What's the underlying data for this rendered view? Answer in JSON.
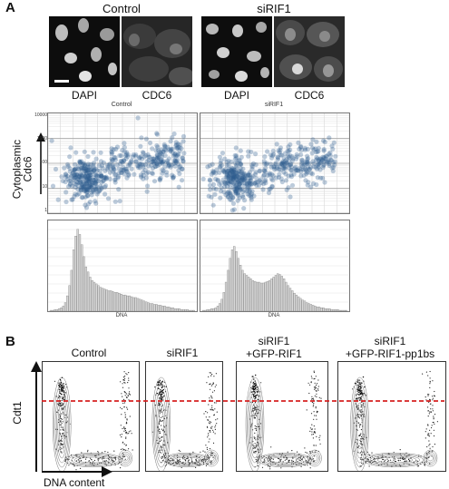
{
  "panel_a": {
    "letter": "A",
    "conditions": [
      "Control",
      "siRIF1"
    ],
    "micro_labels": [
      "DAPI",
      "CDC6",
      "DAPI",
      "CDC6"
    ],
    "scatter_titles": [
      "Control",
      "siRIF1"
    ],
    "ylabel": [
      "Cytoplasmic",
      "Cdc6"
    ],
    "yticks": [
      "10000",
      "1000",
      "100",
      "10",
      "1"
    ],
    "hist_xlabel": "DNA"
  },
  "panel_b": {
    "letter": "B",
    "titles": [
      [
        "Control"
      ],
      [
        "siRIF1"
      ],
      [
        "siRIF1",
        "+GFP-RIF1"
      ],
      [
        "siRIF1",
        "+GFP-RIF1-pp1bs"
      ]
    ],
    "ylabel": "Cdt1",
    "xlabel": "DNA content"
  },
  "colors": {
    "scatter_points": "#2f5d8f",
    "threshold_line": "#d62020"
  },
  "chart_data": [
    {
      "type": "scatter",
      "title": "Control",
      "ylabel": "Cytoplasmic Cdc6",
      "yscale": "log",
      "ylim": [
        1,
        10000
      ],
      "yticks": [
        1,
        10,
        100,
        1000,
        10000
      ]
    },
    {
      "type": "scatter",
      "title": "siRIF1",
      "ylabel": "Cytoplasmic Cdc6",
      "yscale": "log",
      "ylim": [
        1,
        10000
      ],
      "yticks": [
        1,
        10,
        100,
        1000,
        10000
      ]
    },
    {
      "type": "bar",
      "title": "",
      "xlabel": "DNA",
      "values": [
        1,
        1,
        2,
        2,
        3,
        4,
        6,
        10,
        18,
        30,
        48,
        72,
        88,
        96,
        90,
        78,
        64,
        52,
        46,
        40,
        36,
        34,
        32,
        30,
        28,
        27,
        26,
        25,
        24,
        24,
        23,
        22,
        22,
        21,
        20,
        19,
        19,
        18,
        18,
        17,
        16,
        16,
        15,
        14,
        13,
        12,
        11,
        10,
        9,
        9,
        8,
        8,
        7,
        7,
        6,
        6,
        5,
        5,
        4,
        4,
        3,
        3,
        3,
        2,
        2,
        2,
        2,
        1,
        1,
        1
      ]
    },
    {
      "type": "bar",
      "title": "",
      "xlabel": "DNA",
      "values": [
        1,
        1,
        2,
        2,
        3,
        3,
        4,
        6,
        9,
        14,
        22,
        34,
        48,
        62,
        72,
        76,
        70,
        62,
        54,
        48,
        44,
        42,
        40,
        38,
        36,
        35,
        34,
        34,
        33,
        33,
        34,
        35,
        36,
        38,
        40,
        42,
        44,
        43,
        41,
        38,
        34,
        30,
        27,
        24,
        21,
        19,
        17,
        15,
        13,
        12,
        10,
        9,
        8,
        7,
        6,
        5,
        5,
        4,
        4,
        3,
        3,
        3,
        2,
        2,
        2,
        2,
        1,
        1,
        1,
        1
      ]
    }
  ]
}
